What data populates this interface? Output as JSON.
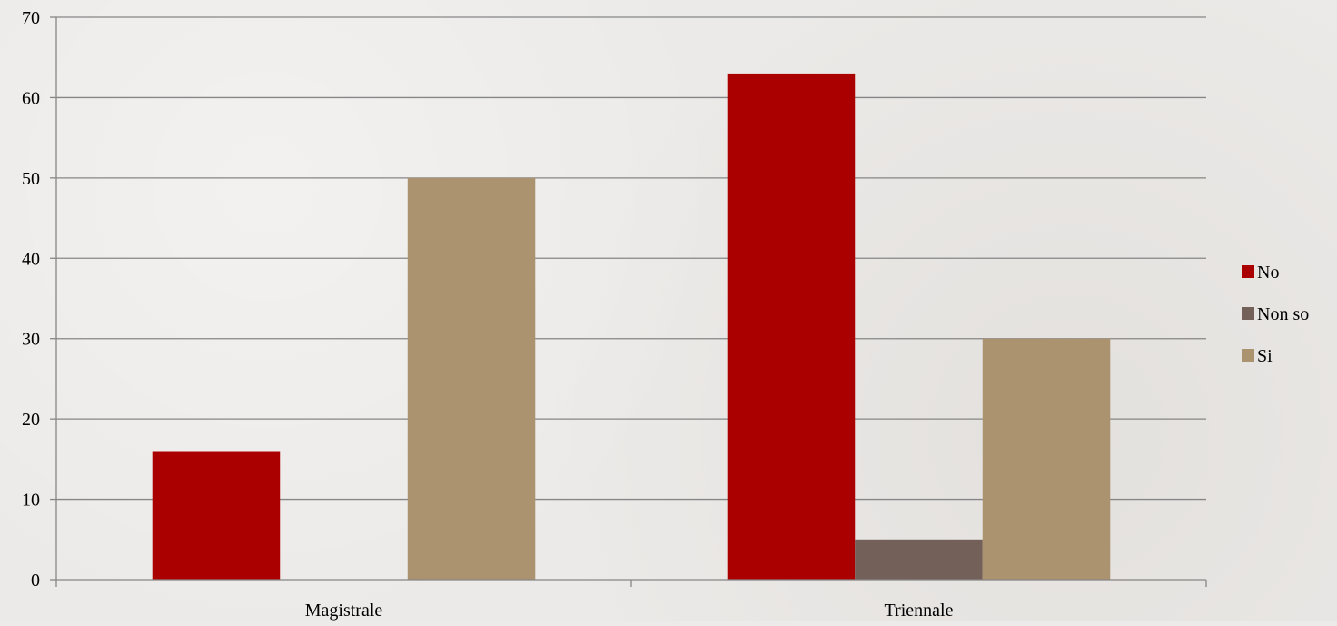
{
  "chart_data": {
    "type": "bar",
    "categories": [
      "Magistrale",
      "Triennale"
    ],
    "series": [
      {
        "name": "No",
        "values": [
          16,
          63
        ],
        "color": "#ab0000"
      },
      {
        "name": "Non so",
        "values": [
          0,
          5
        ],
        "color": "#736159"
      },
      {
        "name": "Si",
        "values": [
          50,
          30
        ],
        "color": "#ab9370"
      }
    ],
    "ylim": [
      0,
      70
    ],
    "yticks": [
      "0",
      "10",
      "20",
      "30",
      "40",
      "50",
      "60",
      "70"
    ],
    "grid": true,
    "legend": "right",
    "title": "",
    "xlabel": "",
    "ylabel": ""
  }
}
